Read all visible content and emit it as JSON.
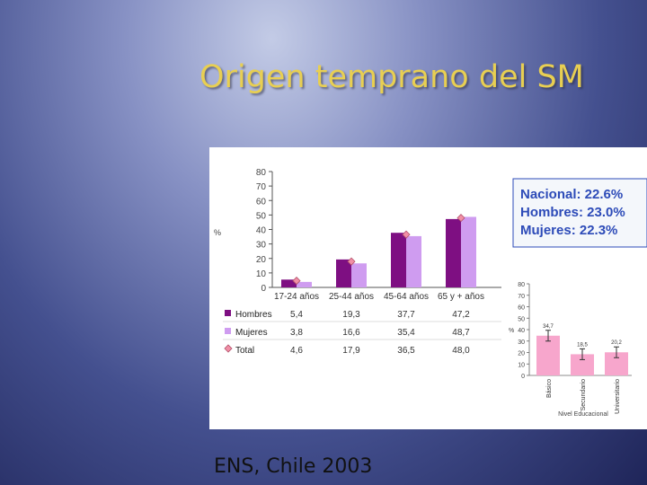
{
  "slide": {
    "title": "Origen temprano del SM",
    "footer": "ENS, Chile 2003"
  },
  "colors": {
    "hombres": "#7e0f82",
    "mujeres": "#cf9cf0",
    "total_marker": "#f18fa6",
    "summary_box": "#2d4bb8",
    "educ_bars": "#f7a6cc"
  },
  "summary_box": {
    "lines": [
      "Nacional: 22.6%",
      "Hombres: 23.0%",
      "Mujeres: 22.3%"
    ]
  },
  "chart_data": [
    {
      "type": "bar",
      "title": "",
      "ylabel": "%",
      "ylim": [
        0,
        80
      ],
      "yticks": [
        0,
        10,
        20,
        30,
        40,
        50,
        60,
        70,
        80
      ],
      "categories": [
        "17-24 años",
        "25-44 años",
        "45-64 años",
        "65 y + años"
      ],
      "series": [
        {
          "name": "Hombres",
          "values": [
            5.4,
            19.3,
            37.7,
            47.2
          ],
          "labels": [
            "5,4",
            "19,3",
            "37,7",
            "47,2"
          ]
        },
        {
          "name": "Mujeres",
          "values": [
            3.8,
            16.6,
            35.4,
            48.7
          ],
          "labels": [
            "3,8",
            "16,6",
            "35,4",
            "48,7"
          ]
        },
        {
          "name": "Total",
          "values": [
            4.6,
            17.9,
            36.5,
            48.0
          ],
          "labels": [
            "4,6",
            "17,9",
            "36,5",
            "48,0"
          ],
          "marker": "diamond"
        }
      ]
    },
    {
      "type": "bar",
      "title": "",
      "ylabel": "%",
      "xlabel": "Nivel Educacional",
      "ylim": [
        0,
        80
      ],
      "yticks": [
        0,
        10,
        20,
        30,
        40,
        50,
        60,
        70,
        80
      ],
      "categories": [
        "Básico",
        "Secundario",
        "Universitario"
      ],
      "values": [
        34.7,
        18.5,
        20.2
      ],
      "labels": [
        "34,7",
        "18,5",
        "20,2"
      ],
      "error_bars": true
    }
  ]
}
